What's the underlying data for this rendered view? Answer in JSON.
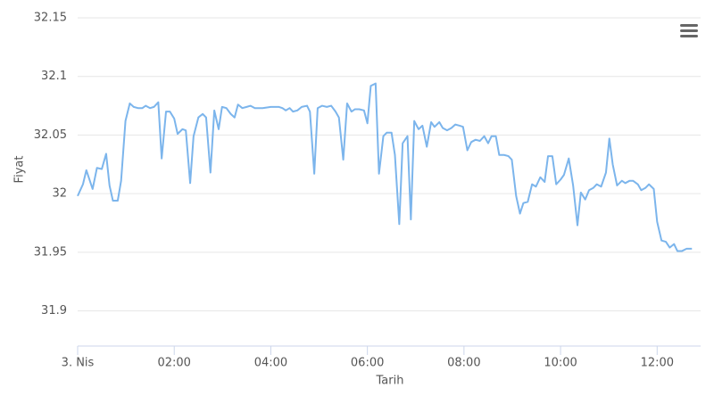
{
  "chart_data": {
    "type": "line",
    "x_label": "Tarih",
    "y_label": "Fiyat",
    "x": [
      0.0,
      0.11,
      0.18,
      0.31,
      0.4,
      0.5,
      0.59,
      0.66,
      0.73,
      0.83,
      0.9,
      0.99,
      1.08,
      1.16,
      1.25,
      1.34,
      1.41,
      1.5,
      1.58,
      1.67,
      1.74,
      1.83,
      1.91,
      2.0,
      2.07,
      2.17,
      2.24,
      2.33,
      2.4,
      2.5,
      2.59,
      2.66,
      2.75,
      2.83,
      2.92,
      2.99,
      3.08,
      3.17,
      3.25,
      3.32,
      3.41,
      3.5,
      3.58,
      3.67,
      3.83,
      4.0,
      4.17,
      4.24,
      4.31,
      4.39,
      4.46,
      4.55,
      4.64,
      4.75,
      4.81,
      4.9,
      4.97,
      5.06,
      5.16,
      5.25,
      5.34,
      5.41,
      5.5,
      5.58,
      5.67,
      5.74,
      5.83,
      5.93,
      6.0,
      6.07,
      6.17,
      6.24,
      6.33,
      6.4,
      6.5,
      6.57,
      6.66,
      6.73,
      6.83,
      6.9,
      6.97,
      7.06,
      7.14,
      7.23,
      7.32,
      7.39,
      7.49,
      7.56,
      7.65,
      7.74,
      7.82,
      7.91,
      7.98,
      8.07,
      8.15,
      8.24,
      8.33,
      8.42,
      8.5,
      8.57,
      8.66,
      8.73,
      8.83,
      8.92,
      8.99,
      9.08,
      9.16,
      9.23,
      9.32,
      9.41,
      9.49,
      9.58,
      9.67,
      9.74,
      9.83,
      9.91,
      10.0,
      10.07,
      10.17,
      10.26,
      10.35,
      10.42,
      10.51,
      10.59,
      10.68,
      10.75,
      10.84,
      10.94,
      11.01,
      11.08,
      11.17,
      11.27,
      11.34,
      11.43,
      11.5,
      11.6,
      11.67,
      11.76,
      11.83,
      11.93,
      12.0,
      12.09,
      12.18,
      12.26,
      12.35,
      12.42,
      12.51,
      12.61,
      12.72
    ],
    "series": [
      {
        "color": "#7cb5ec",
        "values": [
          31.998,
          32.008,
          32.02,
          32.004,
          32.022,
          32.021,
          32.034,
          32.007,
          31.994,
          31.994,
          32.011,
          32.062,
          32.077,
          32.074,
          32.073,
          32.073,
          32.075,
          32.073,
          32.074,
          32.078,
          32.03,
          32.07,
          32.07,
          32.064,
          32.051,
          32.055,
          32.054,
          32.009,
          32.049,
          32.065,
          32.068,
          32.065,
          32.018,
          32.071,
          32.055,
          32.074,
          32.073,
          32.068,
          32.065,
          32.076,
          32.073,
          32.074,
          32.075,
          32.073,
          32.073,
          32.074,
          32.074,
          32.073,
          32.071,
          32.073,
          32.07,
          32.071,
          32.074,
          32.075,
          32.07,
          32.017,
          32.073,
          32.075,
          32.074,
          32.075,
          32.07,
          32.065,
          32.029,
          32.077,
          32.07,
          32.072,
          32.072,
          32.071,
          32.06,
          32.092,
          32.094,
          32.017,
          32.049,
          32.052,
          32.052,
          32.033,
          31.974,
          32.043,
          32.049,
          31.978,
          32.062,
          32.055,
          32.058,
          32.04,
          32.061,
          32.057,
          32.061,
          32.056,
          32.054,
          32.056,
          32.059,
          32.058,
          32.057,
          32.037,
          32.044,
          32.046,
          32.045,
          32.049,
          32.043,
          32.049,
          32.049,
          32.033,
          32.033,
          32.032,
          32.029,
          31.998,
          31.983,
          31.992,
          31.993,
          32.008,
          32.006,
          32.014,
          32.01,
          32.032,
          32.032,
          32.008,
          32.012,
          32.016,
          32.03,
          32.007,
          31.973,
          32.001,
          31.995,
          32.003,
          32.005,
          32.008,
          32.006,
          32.018,
          32.047,
          32.025,
          32.007,
          32.011,
          32.009,
          32.011,
          32.011,
          32.008,
          32.003,
          32.005,
          32.008,
          32.004,
          31.976,
          31.96,
          31.959,
          31.954,
          31.957,
          31.951,
          31.951,
          31.953,
          31.953
        ]
      }
    ],
    "xlim": [
      0,
      12.9
    ],
    "xticks": [
      {
        "value": 0,
        "label": "3. Nis"
      },
      {
        "value": 2,
        "label": "02:00"
      },
      {
        "value": 4,
        "label": "04:00"
      },
      {
        "value": 6,
        "label": "06:00"
      },
      {
        "value": 8,
        "label": "08:00"
      },
      {
        "value": 10,
        "label": "10:00"
      },
      {
        "value": 12,
        "label": "12:00"
      }
    ],
    "ylim": [
      31.87,
      32.15
    ],
    "yticks": [
      31.9,
      31.95,
      32,
      32.05,
      32.1,
      32.15
    ],
    "grid": true
  }
}
